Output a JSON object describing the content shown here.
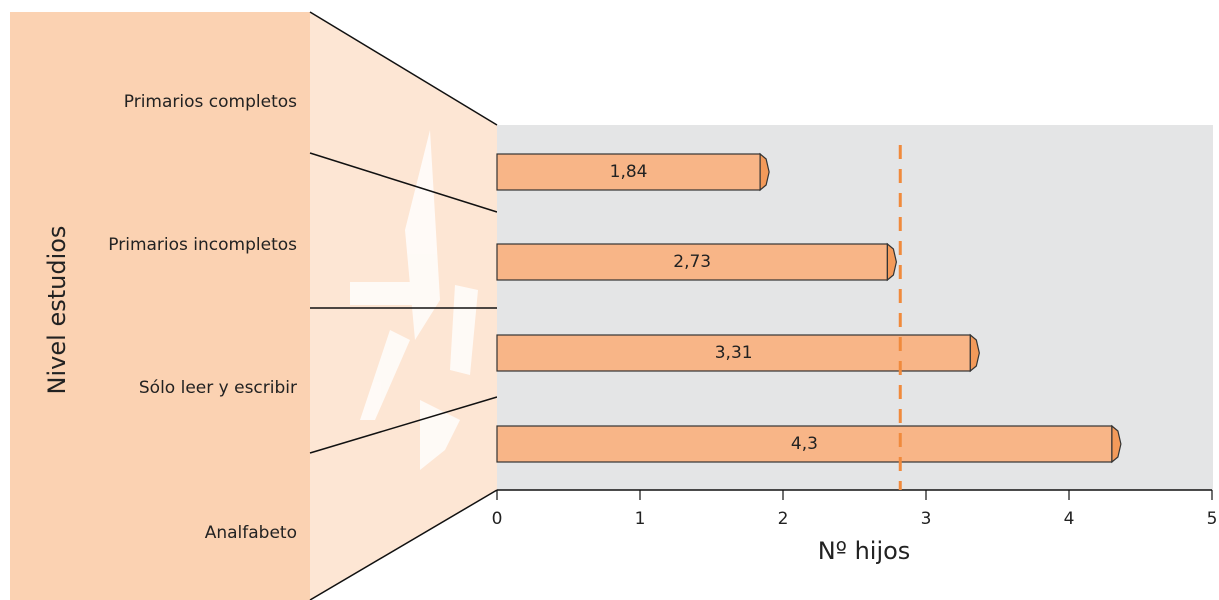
{
  "chart_data": {
    "type": "hbar",
    "y_axis_label": "Nivel estudios",
    "x_axis_label": "Nº hijos",
    "categories": [
      "Primarios completos",
      "Primarios incompletos",
      "Sólo leer y escribir",
      "Analfabeto"
    ],
    "values": [
      1.84,
      2.73,
      3.31,
      4.3
    ],
    "value_labels": [
      "1,84",
      "2,73",
      "3,31",
      "4,3"
    ],
    "color": "#f8b587",
    "reference_line": 2.82,
    "reference_color": "#f08a3c",
    "xlim": [
      0,
      5
    ],
    "xticks": [
      0,
      1,
      2,
      3,
      4,
      5
    ]
  }
}
